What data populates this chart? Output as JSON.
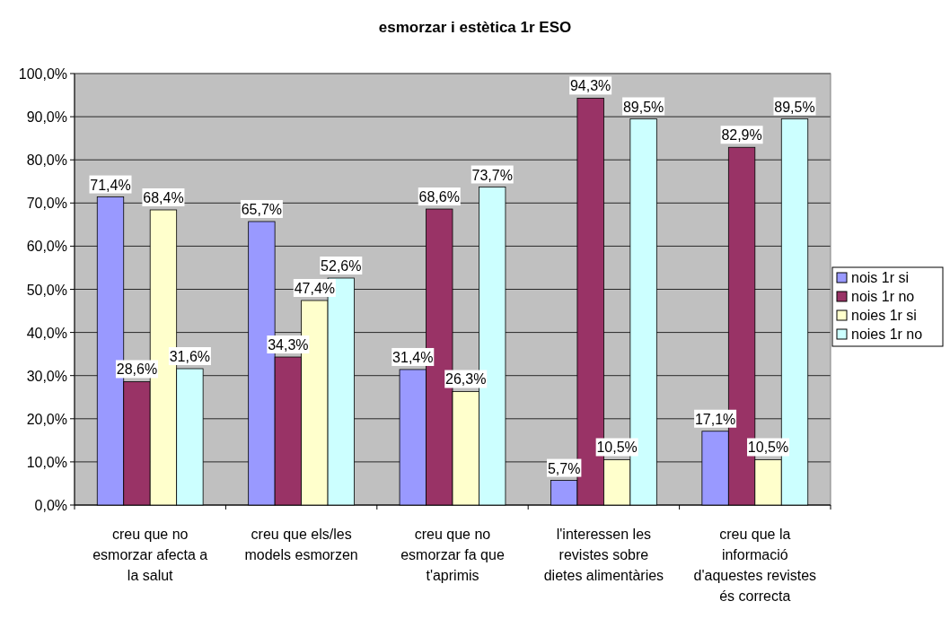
{
  "chart_data": {
    "type": "bar",
    "title": "esmorzar i estètica 1r ESO",
    "categories": [
      "creu que  no esmorzar afecta a la salut",
      "creu que els/les models esmorzen",
      "creu que no esmorzar fa que t'aprimis",
      "l'interessen les revistes sobre dietes alimentàries",
      "creu que la informació d'aquestes revistes és correcta"
    ],
    "series": [
      {
        "name": "nois 1r si",
        "color": "#9999ff",
        "values": [
          71.4,
          65.7,
          31.4,
          5.7,
          17.1
        ],
        "value_labels": [
          "71,4%",
          "65,7%",
          "31,4%",
          "5,7%",
          "17,1%"
        ]
      },
      {
        "name": "nois 1r no",
        "color": "#993366",
        "values": [
          28.6,
          34.3,
          68.6,
          94.3,
          82.9
        ],
        "value_labels": [
          "28,6%",
          "34,3%",
          "68,6%",
          "94,3%",
          "82,9%"
        ]
      },
      {
        "name": "noies 1r si",
        "color": "#ffffcc",
        "values": [
          68.4,
          47.4,
          26.3,
          10.5,
          10.5
        ],
        "value_labels": [
          "68,4%",
          "47,4%",
          "26,3%",
          "10,5%",
          "10,5%"
        ]
      },
      {
        "name": "noies 1r no",
        "color": "#ccffff",
        "values": [
          31.6,
          52.6,
          73.7,
          89.5,
          89.5
        ],
        "value_labels": [
          "31,6%",
          "52,6%",
          "73,7%",
          "89,5%",
          "89,5%"
        ]
      }
    ],
    "ylim": [
      0,
      100
    ],
    "yticks": [
      {
        "value": 0,
        "label": "0,0%"
      },
      {
        "value": 10,
        "label": "10,0%"
      },
      {
        "value": 20,
        "label": "20,0%"
      },
      {
        "value": 30,
        "label": "30,0%"
      },
      {
        "value": 40,
        "label": "40,0%"
      },
      {
        "value": 50,
        "label": "50,0%"
      },
      {
        "value": 60,
        "label": "60,0%"
      },
      {
        "value": 70,
        "label": "70,0%"
      },
      {
        "value": 80,
        "label": "80,0%"
      },
      {
        "value": 90,
        "label": "90,0%"
      },
      {
        "value": 100,
        "label": "100,0%"
      }
    ],
    "grid": "y",
    "legend": "right"
  }
}
